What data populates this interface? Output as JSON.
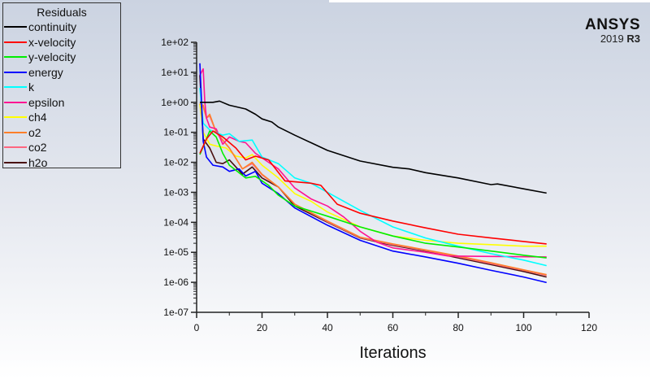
{
  "logo": {
    "brand": "ANSYS",
    "version": "2019",
    "release": "R3"
  },
  "chart_data": {
    "type": "line",
    "title": "",
    "xlabel": "Iterations",
    "ylabel": "",
    "xlim": [
      0,
      120
    ],
    "ylim": [
      1e-07,
      100
    ],
    "yscale": "log",
    "xticks": [
      "0",
      "20",
      "40",
      "60",
      "80",
      "100",
      "120"
    ],
    "yticks": [
      "1e+02",
      "1e+01",
      "1e+00",
      "1e-01",
      "1e-02",
      "1e-03",
      "1e-04",
      "1e-05",
      "1e-06",
      "1e-07"
    ],
    "grid": false,
    "legend": {
      "title": "Residuals",
      "placement": "top-left"
    },
    "series": [
      {
        "name": "continuity",
        "color": "#000000",
        "points": [
          [
            1,
            1
          ],
          [
            5,
            1
          ],
          [
            7,
            1.1
          ],
          [
            10,
            0.8
          ],
          [
            15,
            0.6
          ],
          [
            18,
            0.4
          ],
          [
            20,
            0.28
          ],
          [
            23,
            0.22
          ],
          [
            25,
            0.15
          ],
          [
            30,
            0.08
          ],
          [
            35,
            0.045
          ],
          [
            40,
            0.025
          ],
          [
            50,
            0.011
          ],
          [
            60,
            0.0068
          ],
          [
            65,
            0.006
          ],
          [
            70,
            0.0045
          ],
          [
            80,
            0.003
          ],
          [
            90,
            0.0018
          ],
          [
            92,
            0.0019
          ],
          [
            100,
            0.0013
          ],
          [
            107,
            0.00094
          ]
        ]
      },
      {
        "name": "x-velocity",
        "color": "#ff0000",
        "points": [
          [
            1,
            0.02
          ],
          [
            3,
            0.06
          ],
          [
            5,
            0.11
          ],
          [
            8,
            0.07
          ],
          [
            12,
            0.03
          ],
          [
            15,
            0.012
          ],
          [
            18,
            0.016
          ],
          [
            22,
            0.012
          ],
          [
            27,
            0.0024
          ],
          [
            35,
            0.002
          ],
          [
            38,
            0.0017
          ],
          [
            43,
            0.0004
          ],
          [
            50,
            0.0002
          ],
          [
            60,
            0.00011
          ],
          [
            70,
            6.5e-05
          ],
          [
            80,
            4e-05
          ],
          [
            90,
            3e-05
          ],
          [
            100,
            2.3e-05
          ],
          [
            107,
            1.9e-05
          ]
        ]
      },
      {
        "name": "y-velocity",
        "color": "#00ee00",
        "points": [
          [
            1,
            0.018
          ],
          [
            4,
            0.11
          ],
          [
            6,
            0.07
          ],
          [
            8,
            0.02
          ],
          [
            10,
            0.008
          ],
          [
            15,
            0.003
          ],
          [
            18,
            0.0034
          ],
          [
            22,
            0.0017
          ],
          [
            25,
            0.0008
          ],
          [
            30,
            0.00035
          ],
          [
            40,
            0.00016
          ],
          [
            50,
            7e-05
          ],
          [
            60,
            3.5e-05
          ],
          [
            70,
            2e-05
          ],
          [
            80,
            1.5e-05
          ],
          [
            90,
            1.1e-05
          ],
          [
            100,
            8e-06
          ],
          [
            107,
            6.5e-06
          ]
        ]
      },
      {
        "name": "energy",
        "color": "#0000ff",
        "points": [
          [
            1,
            20
          ],
          [
            2,
            0.05
          ],
          [
            3,
            0.015
          ],
          [
            5,
            0.008
          ],
          [
            8,
            0.007
          ],
          [
            10,
            0.005
          ],
          [
            13,
            0.006
          ],
          [
            15,
            0.0035
          ],
          [
            18,
            0.005
          ],
          [
            20,
            0.002
          ],
          [
            25,
            0.0009
          ],
          [
            30,
            0.0003
          ],
          [
            40,
            8e-05
          ],
          [
            50,
            2.5e-05
          ],
          [
            60,
            1.1e-05
          ],
          [
            70,
            7e-06
          ],
          [
            80,
            4.3e-06
          ],
          [
            90,
            2.5e-06
          ],
          [
            100,
            1.5e-06
          ],
          [
            107,
            9.8e-07
          ]
        ]
      },
      {
        "name": "k",
        "color": "#00ffff",
        "points": [
          [
            1,
            3
          ],
          [
            2,
            0.2
          ],
          [
            4,
            0.12
          ],
          [
            8,
            0.08
          ],
          [
            10,
            0.09
          ],
          [
            13,
            0.05
          ],
          [
            17,
            0.055
          ],
          [
            20,
            0.015
          ],
          [
            25,
            0.009
          ],
          [
            30,
            0.003
          ],
          [
            35,
            0.002
          ],
          [
            40,
            0.001
          ],
          [
            50,
            0.00025
          ],
          [
            60,
            7e-05
          ],
          [
            70,
            3e-05
          ],
          [
            80,
            1.6e-05
          ],
          [
            90,
            9e-06
          ],
          [
            100,
            5.5e-06
          ],
          [
            107,
            3.6e-06
          ]
        ]
      },
      {
        "name": "epsilon",
        "color": "#ff1493",
        "points": [
          [
            1,
            8
          ],
          [
            2,
            13
          ],
          [
            2.5,
            1
          ],
          [
            3,
            0.3
          ],
          [
            4,
            0.15
          ],
          [
            6,
            0.13
          ],
          [
            8,
            0.04
          ],
          [
            10,
            0.07
          ],
          [
            13,
            0.05
          ],
          [
            15,
            0.045
          ],
          [
            18,
            0.02
          ],
          [
            22,
            0.01
          ],
          [
            25,
            0.006
          ],
          [
            30,
            0.0014
          ],
          [
            35,
            0.0006
          ],
          [
            40,
            0.00035
          ],
          [
            45,
            0.00015
          ],
          [
            50,
            5e-05
          ],
          [
            55,
            2.2e-05
          ],
          [
            60,
            1.4e-05
          ],
          [
            70,
            1e-05
          ],
          [
            77,
            7.5e-06
          ],
          [
            90,
            7.3e-06
          ],
          [
            107,
            7e-06
          ]
        ]
      },
      {
        "name": "ch4",
        "color": "#ffff00",
        "points": [
          [
            1,
            0.9
          ],
          [
            2,
            0.1
          ],
          [
            4,
            0.04
          ],
          [
            6,
            0.035
          ],
          [
            9,
            0.03
          ],
          [
            12,
            0.016
          ],
          [
            15,
            0.014
          ],
          [
            17,
            0.018
          ],
          [
            20,
            0.008
          ],
          [
            25,
            0.003
          ],
          [
            30,
            0.0009
          ],
          [
            35,
            0.0005
          ],
          [
            40,
            0.00022
          ],
          [
            50,
            7e-05
          ],
          [
            60,
            3.5e-05
          ],
          [
            70,
            2.5e-05
          ],
          [
            80,
            2e-05
          ],
          [
            90,
            1.8e-05
          ],
          [
            100,
            1.6e-05
          ],
          [
            107,
            1.6e-05
          ]
        ]
      },
      {
        "name": "o2",
        "color": "#ff7f2a",
        "points": [
          [
            1,
            0.9
          ],
          [
            2,
            0.8
          ],
          [
            3,
            0.3
          ],
          [
            4,
            0.4
          ],
          [
            6,
            0.1
          ],
          [
            10,
            0.03
          ],
          [
            14,
            0.006
          ],
          [
            17,
            0.01
          ],
          [
            20,
            0.004
          ],
          [
            25,
            0.0015
          ],
          [
            30,
            0.0004
          ],
          [
            40,
            0.00011
          ],
          [
            50,
            3.2e-05
          ],
          [
            60,
            1.9e-05
          ],
          [
            70,
            1.2e-05
          ],
          [
            80,
            7.5e-06
          ],
          [
            90,
            4.5e-06
          ],
          [
            100,
            2.6e-06
          ],
          [
            107,
            1.8e-06
          ]
        ]
      },
      {
        "name": "co2",
        "color": "#ff6680",
        "points": [
          [
            1,
            0.9
          ],
          [
            2,
            0.7
          ],
          [
            3,
            0.3
          ],
          [
            4,
            0.35
          ],
          [
            6,
            0.1
          ],
          [
            10,
            0.03
          ],
          [
            14,
            0.006
          ],
          [
            17,
            0.009
          ],
          [
            20,
            0.0038
          ],
          [
            25,
            0.0015
          ],
          [
            30,
            0.0004
          ],
          [
            40,
            0.000105
          ],
          [
            50,
            3.1e-05
          ],
          [
            60,
            1.8e-05
          ],
          [
            70,
            1.15e-05
          ],
          [
            80,
            7e-06
          ],
          [
            90,
            4.2e-06
          ],
          [
            100,
            2.5e-06
          ],
          [
            107,
            1.7e-06
          ]
        ]
      },
      {
        "name": "h2o",
        "color": "#4a1010",
        "points": [
          [
            1,
            8
          ],
          [
            2,
            0.06
          ],
          [
            4,
            0.03
          ],
          [
            6,
            0.01
          ],
          [
            8,
            0.009
          ],
          [
            10,
            0.012
          ],
          [
            14,
            0.004
          ],
          [
            17,
            0.007
          ],
          [
            20,
            0.003
          ],
          [
            25,
            0.0015
          ],
          [
            30,
            0.00035
          ],
          [
            40,
            0.0001
          ],
          [
            50,
            3e-05
          ],
          [
            60,
            1.7e-05
          ],
          [
            70,
            1.1e-05
          ],
          [
            80,
            6.5e-06
          ],
          [
            90,
            3.9e-06
          ],
          [
            100,
            2.3e-06
          ],
          [
            107,
            1.5e-06
          ]
        ]
      }
    ]
  }
}
